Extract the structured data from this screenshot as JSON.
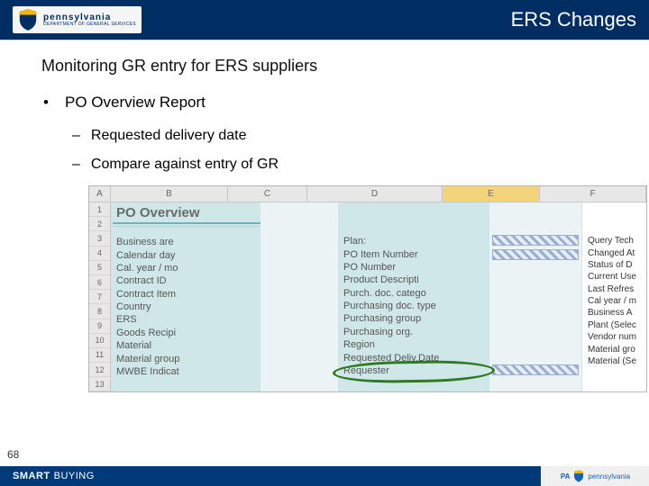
{
  "header": {
    "title": "ERS Changes",
    "logo": {
      "state": "pennsylvania",
      "dept": "DEPARTMENT OF GENERAL SERVICES"
    }
  },
  "content": {
    "section_title": "Monitoring GR entry for ERS suppliers",
    "bullet": "PO Overview Report",
    "sub1": "Requested delivery date",
    "sub2": "Compare against entry of GR"
  },
  "screenshot": {
    "cols": {
      "a": "A",
      "b": "B",
      "c": "C",
      "d": "D",
      "e": "E",
      "f": "F"
    },
    "po_title": "PO Overview",
    "rows": [
      "1",
      "2",
      "3",
      "4",
      "5",
      "6",
      "7",
      "8",
      "9",
      "10",
      "11",
      "12",
      "13"
    ],
    "col_b": [
      "Business are",
      "Calendar day",
      "Cal. year / mo",
      "Contract ID",
      "Contract Item",
      "Country",
      "ERS",
      "Goods Recipi",
      "Material",
      "Material group",
      "MWBE Indicat"
    ],
    "col_d": [
      "Plan:",
      "PO Item Number",
      "PO Number",
      "Product Descripti",
      "Purch. doc. catego",
      "Purchasing doc. type",
      "Purchasing group",
      "Purchasing org.",
      "Region",
      "Requested Deliv.Date",
      "Requester"
    ],
    "col_f": [
      "Query Tech",
      "Changed At",
      "Status of D",
      "Current Use",
      "Last Refres",
      "Cal year / m",
      "Business A",
      "Plant (Selec",
      "Vendor num",
      "Material gro",
      "Material (Se"
    ]
  },
  "page_number": "68",
  "footer": {
    "smart": "SMART",
    "buying": "BUYING",
    "pa": "PA",
    "penn": "pennsylvania"
  },
  "colors": {
    "header_bg": "#002d62",
    "panel_bg": "#cfe7e9",
    "highlight_col": "#f4d47a",
    "circle": "#2f7a1f",
    "footer_bg": "#003a78"
  }
}
